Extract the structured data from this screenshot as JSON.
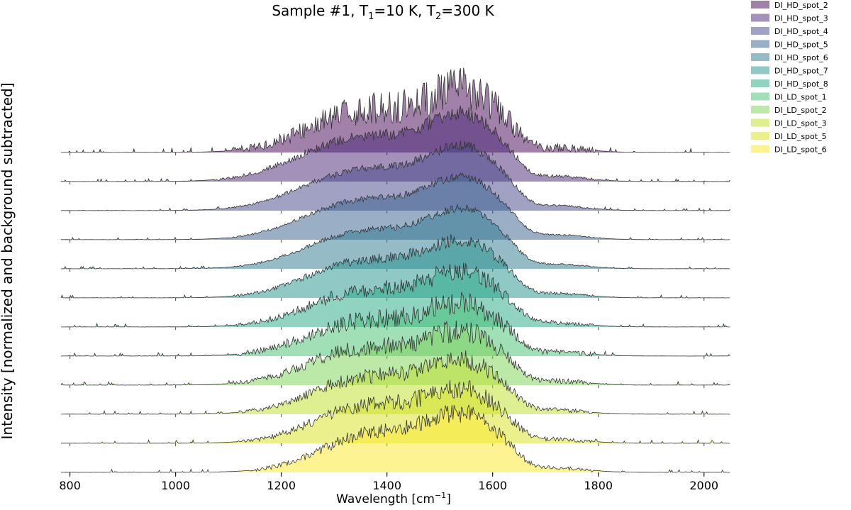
{
  "chart_data": {
    "type": "area",
    "title": {
      "prefix": "Sample #1, T",
      "sub1": "1",
      "mid": "=10 K, T",
      "sub2": "2",
      "suffix": "=300 K"
    },
    "xlabel": {
      "prefix": "Wavelength [cm",
      "sup": "−1",
      "suffix": "]"
    },
    "ylabel": "Intensity [normalized and background subtracted]",
    "xlim": [
      775,
      2050
    ],
    "x_ticks": [
      800,
      1000,
      1200,
      1400,
      1600,
      1800,
      2000
    ],
    "grid": false,
    "legend_position": "top-right",
    "series": [
      {
        "name": "DI_HD_spot_2",
        "color": "#440154",
        "noise": 0.3,
        "shoulder": 0.72,
        "onset": 990,
        "peak_height": 1.25
      },
      {
        "name": "DI_HD_spot_3",
        "color": "#482475",
        "noise": 0.1,
        "shoulder": 0.66,
        "onset": 890,
        "peak_height": 1.35
      },
      {
        "name": "DI_HD_spot_4",
        "color": "#414487",
        "noise": 0.07,
        "shoulder": 0.64,
        "onset": 930,
        "peak_height": 1.3
      },
      {
        "name": "DI_HD_spot_5",
        "color": "#355f8d",
        "noise": 0.06,
        "shoulder": 0.66,
        "onset": 960,
        "peak_height": 1.25
      },
      {
        "name": "DI_HD_spot_6",
        "color": "#2a788e",
        "noise": 0.06,
        "shoulder": 0.66,
        "onset": 980,
        "peak_height": 1.2
      },
      {
        "name": "DI_HD_spot_7",
        "color": "#21918c",
        "noise": 0.1,
        "shoulder": 0.7,
        "onset": 990,
        "peak_height": 1.15
      },
      {
        "name": "DI_HD_spot_8",
        "color": "#22a884",
        "noise": 0.16,
        "shoulder": 0.72,
        "onset": 1000,
        "peak_height": 1.1
      },
      {
        "name": "DI_LD_spot_1",
        "color": "#44bf70",
        "noise": 0.2,
        "shoulder": 0.74,
        "onset": 1000,
        "peak_height": 1.05
      },
      {
        "name": "DI_LD_spot_2",
        "color": "#7ad151",
        "noise": 0.18,
        "shoulder": 0.78,
        "onset": 1000,
        "peak_height": 1.05
      },
      {
        "name": "DI_LD_spot_3",
        "color": "#bddf26",
        "noise": 0.16,
        "shoulder": 0.8,
        "onset": 1020,
        "peak_height": 1.05
      },
      {
        "name": "DI_LD_spot_5",
        "color": "#d8e219",
        "noise": 0.16,
        "shoulder": 0.84,
        "onset": 1040,
        "peak_height": 1.05
      },
      {
        "name": "DI_LD_spot_6",
        "color": "#fde725",
        "noise": 0.14,
        "shoulder": 0.86,
        "onset": 1080,
        "peak_height": 1.15
      }
    ]
  }
}
